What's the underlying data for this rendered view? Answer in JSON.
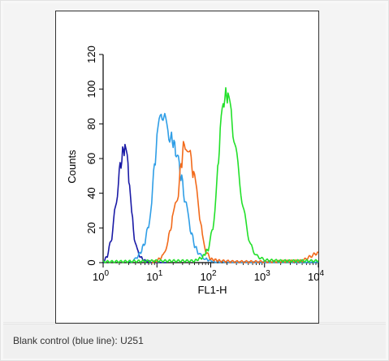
{
  "caption": "Blank control (blue line): U251",
  "chart_data": {
    "type": "line",
    "xlabel": "FL1-H",
    "ylabel": "Counts",
    "x_scale": "log",
    "xlim": [
      1,
      10000
    ],
    "ylim": [
      0,
      120
    ],
    "x_ticks": [
      {
        "value": 1,
        "base": "10",
        "exp": "0"
      },
      {
        "value": 10,
        "base": "10",
        "exp": "1"
      },
      {
        "value": 100,
        "base": "10",
        "exp": "2"
      },
      {
        "value": 1000,
        "base": "10",
        "exp": "3"
      },
      {
        "value": 10000,
        "base": "10",
        "exp": "4"
      }
    ],
    "y_ticks": [
      "0",
      "20",
      "40",
      "60",
      "80",
      "100",
      "120"
    ],
    "grid": false,
    "series": [
      {
        "color": "#1a1aa6",
        "x": [
          1.0,
          1.2,
          1.45,
          1.7,
          2.0,
          2.3,
          2.55,
          2.8,
          3.1,
          3.4,
          3.8,
          4.3,
          5.0,
          6.0,
          7.5,
          10,
          15
        ],
        "y": [
          0,
          4,
          15,
          32,
          52,
          63,
          67,
          60,
          45,
          28,
          15,
          7,
          3,
          1,
          0.5,
          0,
          0
        ]
      },
      {
        "color": "#2f9ee6",
        "x": [
          3,
          4,
          5,
          6,
          7,
          8,
          9,
          10,
          11,
          12,
          13,
          14,
          16,
          18,
          20,
          23,
          26,
          30,
          35,
          40,
          50,
          60,
          80,
          120,
          300,
          1000,
          10000
        ],
        "y": [
          0,
          2,
          6,
          12,
          22,
          37,
          55,
          70,
          79,
          84,
          86,
          82,
          75,
          72,
          70,
          63,
          55,
          45,
          32,
          22,
          10,
          5,
          2,
          0.5,
          0,
          0,
          0
        ]
      },
      {
        "color": "#f26a1b",
        "x": [
          8,
          10,
          13,
          16,
          18,
          20,
          22,
          25,
          28,
          31,
          35,
          40,
          45,
          50,
          55,
          60,
          70,
          80,
          100,
          150,
          300,
          1000,
          5000,
          10000
        ],
        "y": [
          0,
          1,
          4,
          12,
          20,
          27,
          33,
          42,
          55,
          66,
          69,
          64,
          55,
          48,
          40,
          32,
          15,
          7,
          2,
          1,
          0.5,
          0.5,
          1,
          6
        ]
      },
      {
        "color": "#22e02a",
        "x": [
          1,
          10,
          50,
          70,
          90,
          110,
          130,
          150,
          170,
          190,
          210,
          240,
          270,
          320,
          380,
          450,
          550,
          700,
          1000,
          2000,
          5000,
          10000
        ],
        "y": [
          0.5,
          1,
          1,
          3,
          8,
          20,
          45,
          75,
          92,
          97,
          95,
          85,
          72,
          55,
          38,
          22,
          10,
          4,
          1.5,
          1,
          1,
          1
        ]
      }
    ]
  }
}
